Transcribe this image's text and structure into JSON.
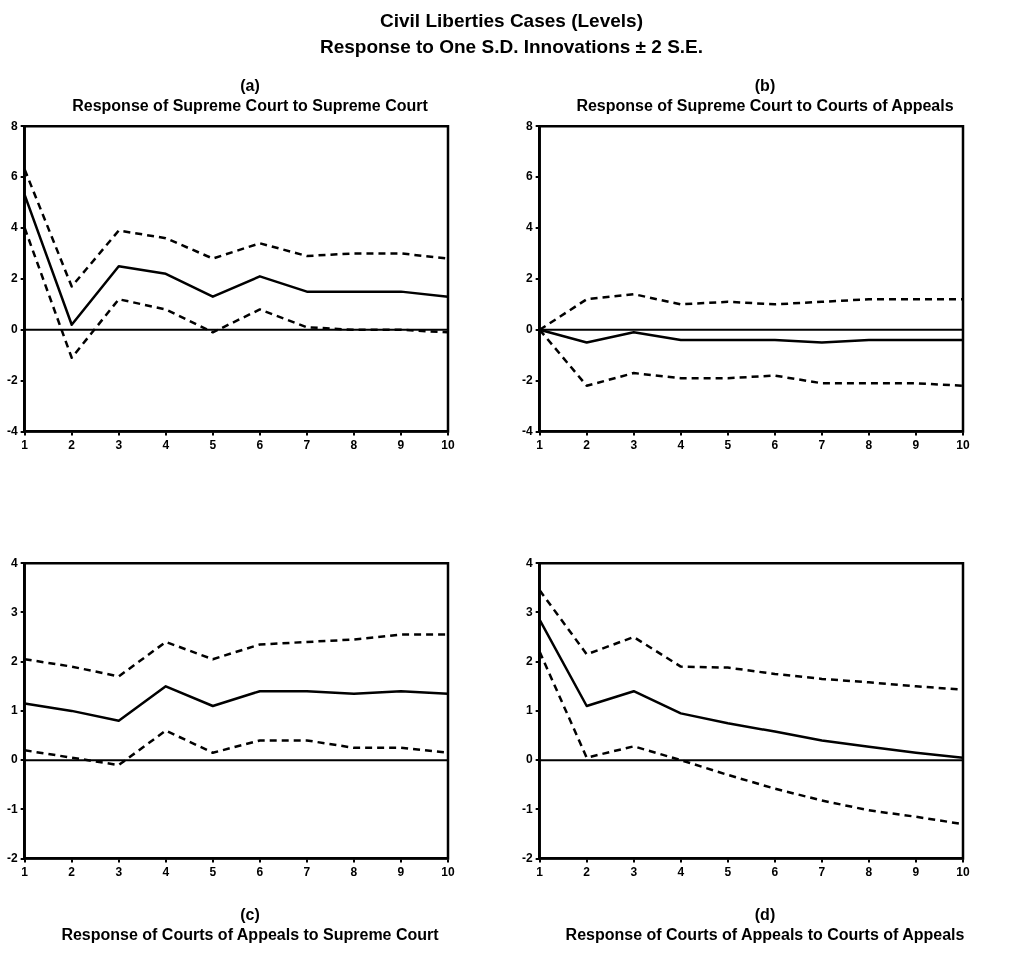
{
  "chart_data": [
    {
      "type": "other",
      "title": "Civil Liberties Cases (Levels)",
      "subtitle": "Response to One S.D. Innovations ± 2 S.E."
    },
    {
      "type": "line",
      "title": "Response of Supreme Court to Supreme Court",
      "annotations": [
        "(a)"
      ],
      "x": [
        1,
        2,
        3,
        4,
        5,
        6,
        7,
        8,
        9,
        10
      ],
      "xlim": [
        1,
        10
      ],
      "xticks": [
        1,
        2,
        3,
        4,
        5,
        6,
        7,
        8,
        9,
        10
      ],
      "ylim": [
        -4,
        8
      ],
      "yticks": [
        -4,
        -2,
        0,
        2,
        4,
        6,
        8
      ],
      "ref_lines": [
        {
          "axis": "y",
          "value": 0
        }
      ],
      "series": [
        {
          "color": "#000000",
          "line_style": "solid",
          "values": [
            5.3,
            0.2,
            2.5,
            2.2,
            1.3,
            2.1,
            1.5,
            1.5,
            1.5,
            1.3
          ]
        },
        {
          "color": "#000000",
          "line_style": "dashed",
          "values": [
            6.3,
            1.7,
            3.9,
            3.6,
            2.8,
            3.4,
            2.9,
            3.0,
            3.0,
            2.8
          ]
        },
        {
          "color": "#000000",
          "line_style": "dashed",
          "values": [
            4.0,
            -1.1,
            1.2,
            0.8,
            -0.1,
            0.8,
            0.1,
            0.0,
            0.0,
            -0.1
          ]
        }
      ]
    },
    {
      "type": "line",
      "title": "Response of Supreme Court to Courts of Appeals",
      "annotations": [
        "(b)"
      ],
      "x": [
        1,
        2,
        3,
        4,
        5,
        6,
        7,
        8,
        9,
        10
      ],
      "xlim": [
        1,
        10
      ],
      "xticks": [
        1,
        2,
        3,
        4,
        5,
        6,
        7,
        8,
        9,
        10
      ],
      "ylim": [
        -4,
        8
      ],
      "yticks": [
        -4,
        -2,
        0,
        2,
        4,
        6,
        8
      ],
      "ref_lines": [
        {
          "axis": "y",
          "value": 0
        }
      ],
      "series": [
        {
          "color": "#000000",
          "line_style": "solid",
          "values": [
            0,
            -0.5,
            -0.1,
            -0.4,
            -0.4,
            -0.4,
            -0.5,
            -0.4,
            -0.4,
            -0.4
          ]
        },
        {
          "color": "#000000",
          "line_style": "dashed",
          "values": [
            0,
            1.2,
            1.4,
            1.0,
            1.1,
            1.0,
            1.1,
            1.2,
            1.2,
            1.2
          ]
        },
        {
          "color": "#000000",
          "line_style": "dashed",
          "values": [
            0,
            -2.2,
            -1.7,
            -1.9,
            -1.9,
            -1.8,
            -2.1,
            -2.1,
            -2.1,
            -2.2
          ]
        }
      ]
    },
    {
      "type": "line",
      "title": "Response of Courts of Appeals to Supreme Court",
      "annotations": [
        "(c)"
      ],
      "x": [
        1,
        2,
        3,
        4,
        5,
        6,
        7,
        8,
        9,
        10
      ],
      "xlim": [
        1,
        10
      ],
      "xticks": [
        1,
        2,
        3,
        4,
        5,
        6,
        7,
        8,
        9,
        10
      ],
      "ylim": [
        -2,
        4
      ],
      "yticks": [
        -2,
        -1,
        0,
        1,
        2,
        3,
        4
      ],
      "ref_lines": [
        {
          "axis": "y",
          "value": 0
        }
      ],
      "series": [
        {
          "color": "#000000",
          "line_style": "solid",
          "values": [
            1.15,
            1.0,
            0.8,
            1.5,
            1.1,
            1.4,
            1.4,
            1.35,
            1.4,
            1.35
          ]
        },
        {
          "color": "#000000",
          "line_style": "dashed",
          "values": [
            2.05,
            1.9,
            1.7,
            2.4,
            2.05,
            2.35,
            2.4,
            2.45,
            2.55,
            2.55
          ]
        },
        {
          "color": "#000000",
          "line_style": "dashed",
          "values": [
            0.2,
            0.05,
            -0.1,
            0.6,
            0.15,
            0.4,
            0.4,
            0.25,
            0.25,
            0.15
          ]
        }
      ]
    },
    {
      "type": "line",
      "title": "Response of Courts of Appeals to Courts of Appeals",
      "annotations": [
        "(d)"
      ],
      "x": [
        1,
        2,
        3,
        4,
        5,
        6,
        7,
        8,
        9,
        10
      ],
      "xlim": [
        1,
        10
      ],
      "xticks": [
        1,
        2,
        3,
        4,
        5,
        6,
        7,
        8,
        9,
        10
      ],
      "ylim": [
        -2,
        4
      ],
      "yticks": [
        -2,
        -1,
        0,
        1,
        2,
        3,
        4
      ],
      "ref_lines": [
        {
          "axis": "y",
          "value": 0
        }
      ],
      "series": [
        {
          "color": "#000000",
          "line_style": "solid",
          "values": [
            2.85,
            1.1,
            1.4,
            0.95,
            0.75,
            0.58,
            0.4,
            0.27,
            0.15,
            0.05
          ]
        },
        {
          "color": "#000000",
          "line_style": "dashed",
          "values": [
            3.45,
            2.15,
            2.5,
            1.9,
            1.88,
            1.75,
            1.65,
            1.58,
            1.5,
            1.43
          ]
        },
        {
          "color": "#000000",
          "line_style": "dashed",
          "values": [
            2.2,
            0.05,
            0.28,
            0.0,
            -0.3,
            -0.58,
            -0.82,
            -1.02,
            -1.15,
            -1.3
          ]
        }
      ]
    }
  ]
}
